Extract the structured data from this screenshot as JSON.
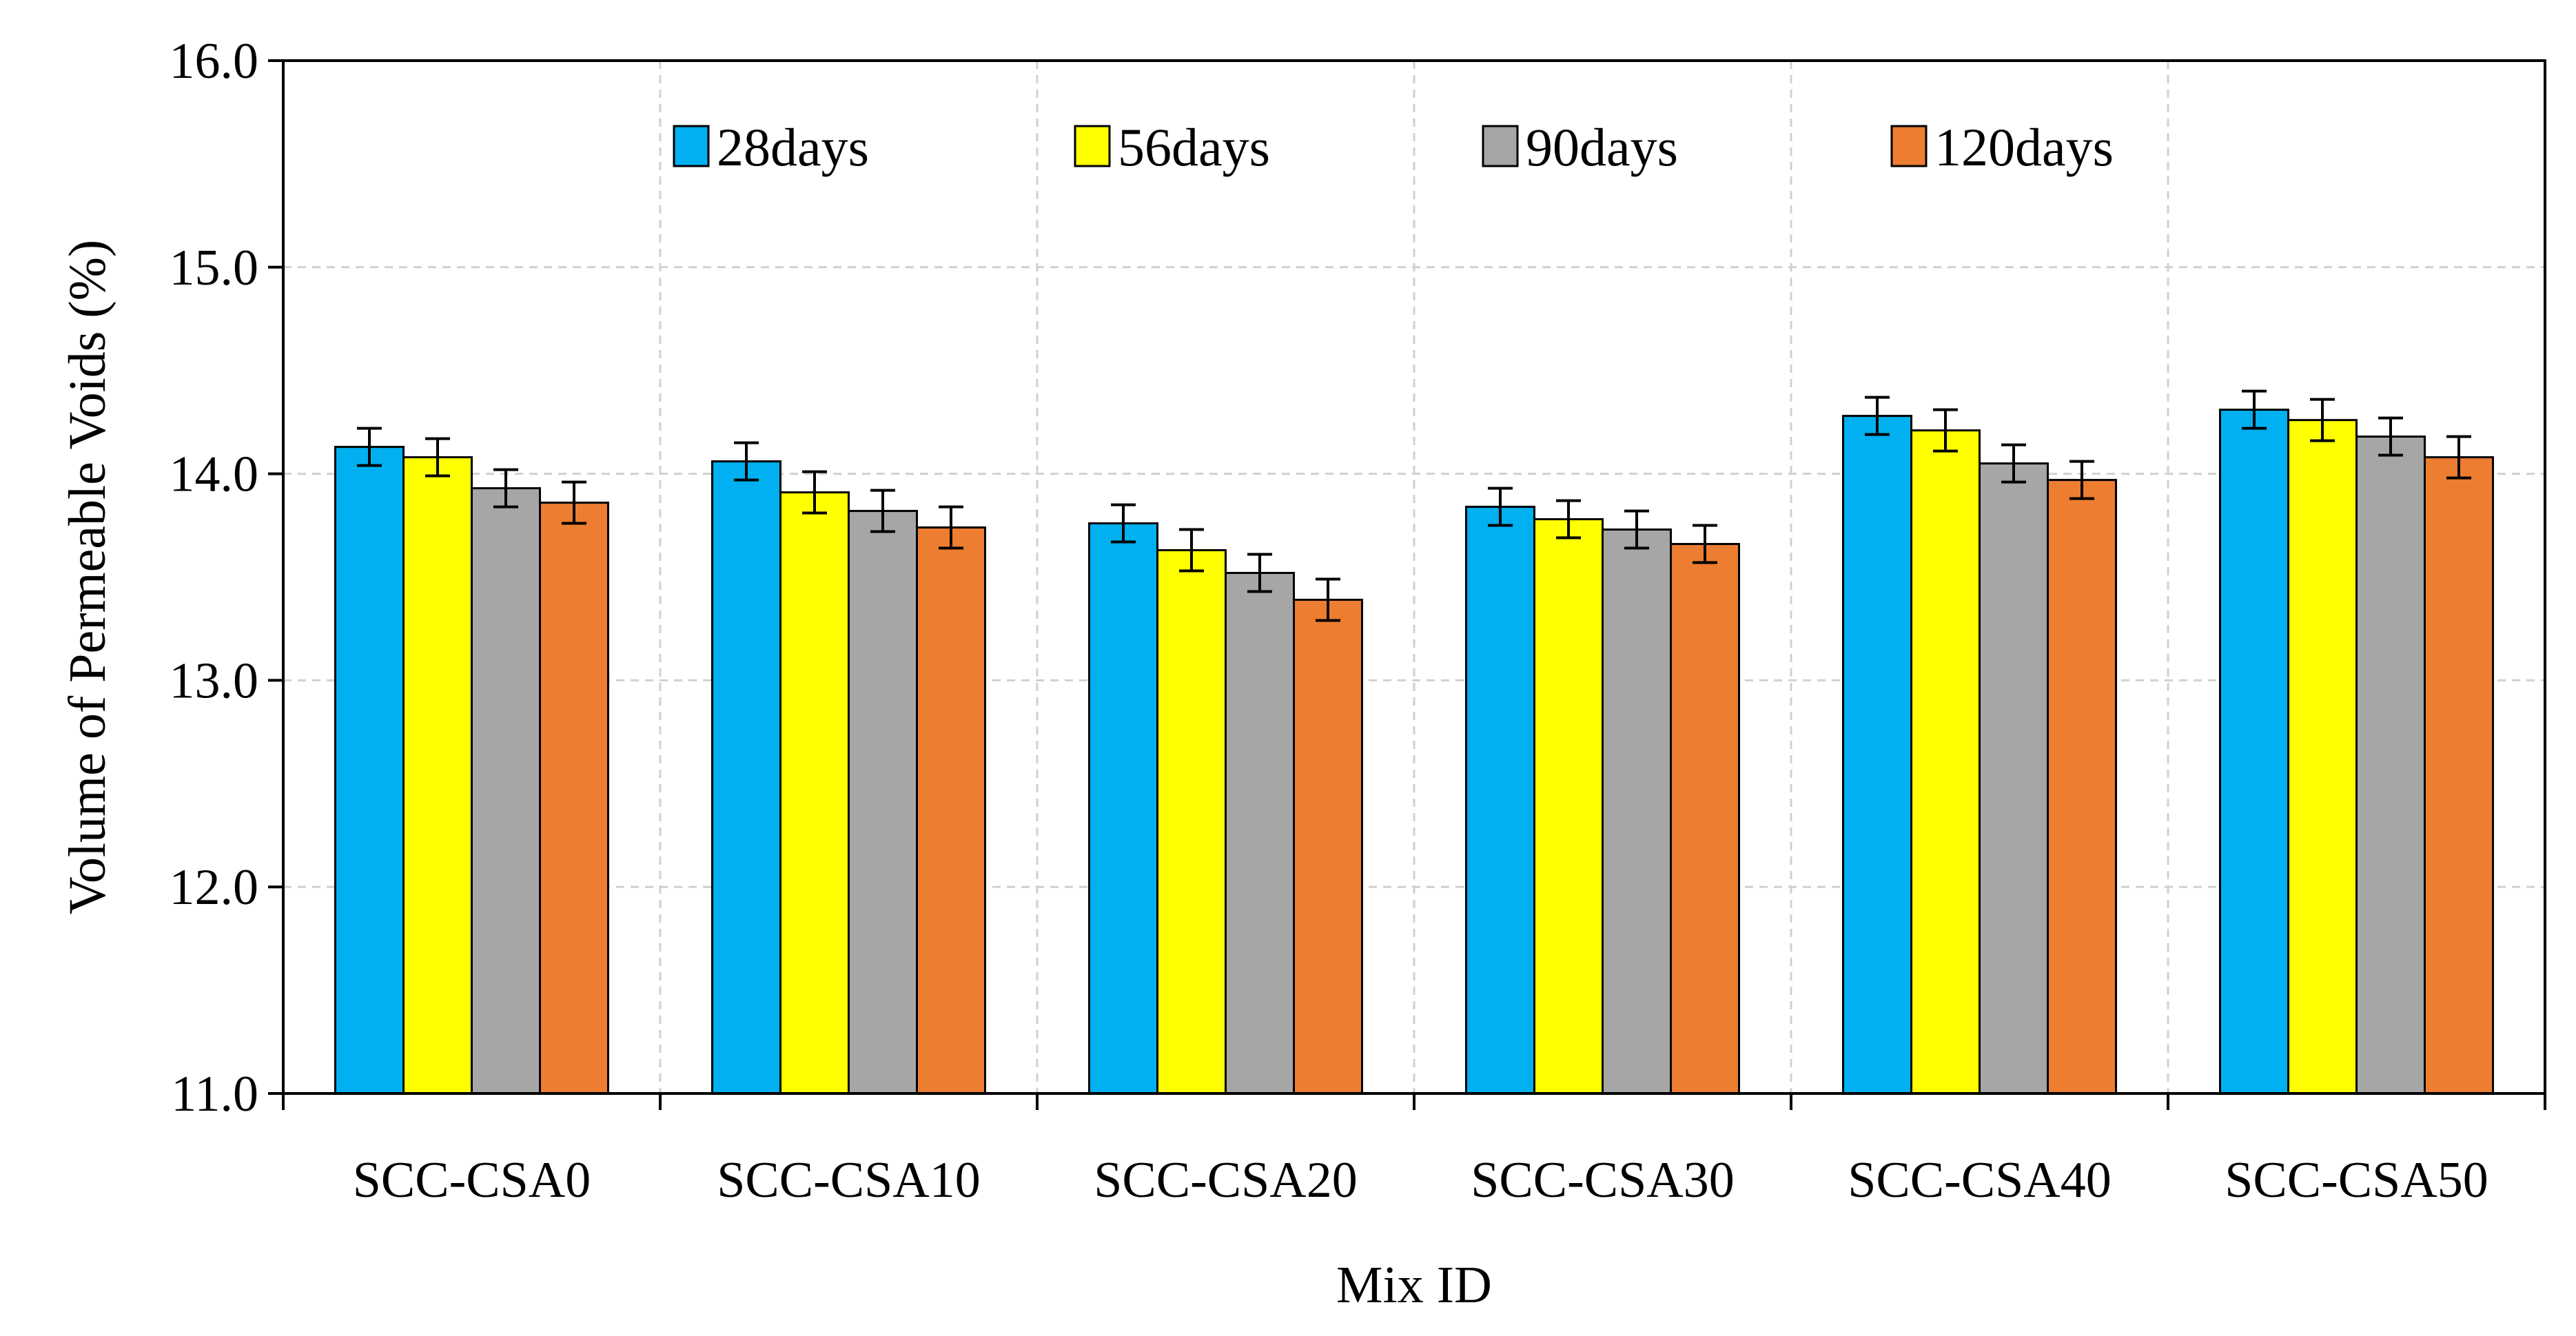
{
  "chart_data": {
    "type": "bar",
    "title": "",
    "xlabel": "Mix ID",
    "ylabel": "Volume of Permeable Voids (%)",
    "ylim": [
      11.0,
      16.0
    ],
    "yticks": [
      "11.0",
      "12.0",
      "13.0",
      "14.0",
      "15.0",
      "16.0"
    ],
    "grid": true,
    "legend_position": "top",
    "categories": [
      "SCC-CSA0",
      "SCC-CSA10",
      "SCC-CSA20",
      "SCC-CSA30",
      "SCC-CSA40",
      "SCC-CSA50"
    ],
    "series": [
      {
        "name": "28days",
        "color": "#00B0F0",
        "values": [
          14.13,
          14.06,
          13.76,
          13.84,
          14.28,
          14.31
        ],
        "errors": [
          0.09,
          0.09,
          0.09,
          0.09,
          0.09,
          0.09
        ]
      },
      {
        "name": "56days",
        "color": "#FFFF00",
        "values": [
          14.08,
          13.91,
          13.63,
          13.78,
          14.21,
          14.26
        ],
        "errors": [
          0.09,
          0.1,
          0.1,
          0.09,
          0.1,
          0.1
        ]
      },
      {
        "name": "90days",
        "color": "#A6A6A6",
        "values": [
          13.93,
          13.82,
          13.52,
          13.73,
          14.05,
          14.18
        ],
        "errors": [
          0.09,
          0.1,
          0.09,
          0.09,
          0.09,
          0.09
        ]
      },
      {
        "name": "120days",
        "color": "#ED7D31",
        "values": [
          13.86,
          13.74,
          13.39,
          13.66,
          13.97,
          14.08
        ],
        "errors": [
          0.1,
          0.1,
          0.1,
          0.09,
          0.09,
          0.1
        ]
      }
    ]
  }
}
